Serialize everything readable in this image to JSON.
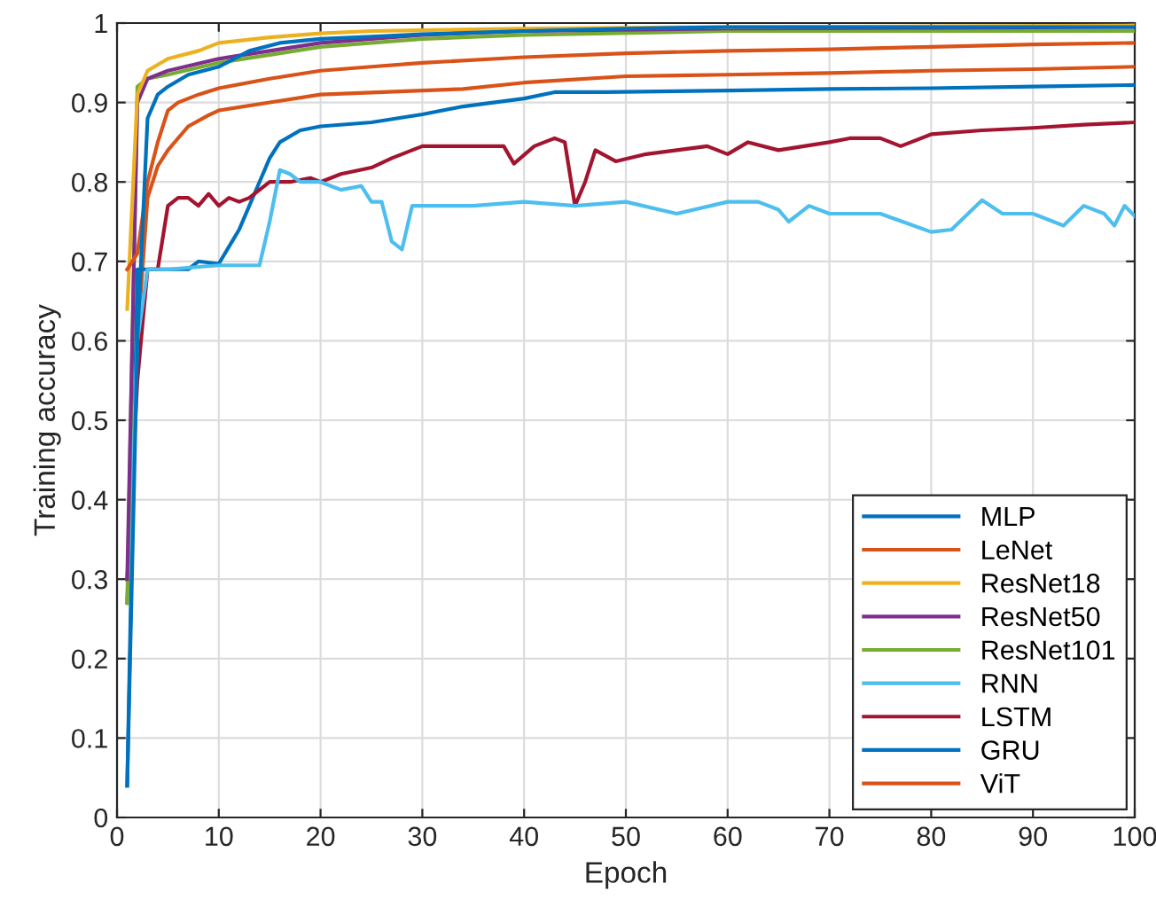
{
  "chart_data": {
    "type": "line",
    "xlabel": "Epoch",
    "ylabel": "Training accuracy",
    "xlim": [
      0,
      100
    ],
    "ylim": [
      0,
      1
    ],
    "xticks": [
      0,
      10,
      20,
      30,
      40,
      50,
      60,
      70,
      80,
      90,
      100
    ],
    "yticks": [
      0,
      0.1,
      0.2,
      0.3,
      0.4,
      0.5,
      0.6,
      0.7,
      0.8,
      0.9,
      1
    ],
    "grid": true,
    "legend": "bottom right",
    "marker": "none",
    "line_style": "solid",
    "series": [
      {
        "name": "MLP",
        "color": "#0072bd",
        "x": [
          1,
          2,
          3,
          4,
          5,
          7,
          10,
          13,
          16,
          20,
          25,
          30,
          40,
          50,
          60,
          80,
          100
        ],
        "values": [
          0.04,
          0.6,
          0.88,
          0.91,
          0.92,
          0.935,
          0.945,
          0.965,
          0.975,
          0.98,
          0.983,
          0.986,
          0.99,
          0.993,
          0.995,
          0.995,
          0.995
        ]
      },
      {
        "name": "LeNet",
        "color": "#d95319",
        "x": [
          1,
          2,
          3,
          4,
          5,
          6,
          8,
          10,
          15,
          20,
          25,
          30,
          40,
          50,
          60,
          70,
          80,
          90,
          100
        ],
        "values": [
          0.69,
          0.71,
          0.8,
          0.85,
          0.89,
          0.9,
          0.91,
          0.918,
          0.93,
          0.94,
          0.945,
          0.95,
          0.957,
          0.962,
          0.965,
          0.967,
          0.97,
          0.973,
          0.975
        ]
      },
      {
        "name": "ResNet18",
        "color": "#edb120",
        "x": [
          1,
          2,
          3,
          5,
          8,
          10,
          15,
          20,
          25,
          30,
          40,
          60,
          80,
          100
        ],
        "values": [
          0.64,
          0.91,
          0.94,
          0.955,
          0.965,
          0.975,
          0.982,
          0.987,
          0.99,
          0.991,
          0.993,
          0.995,
          0.996,
          0.997
        ]
      },
      {
        "name": "ResNet50",
        "color": "#7e2f8e",
        "x": [
          1,
          2,
          3,
          5,
          10,
          15,
          20,
          30,
          40,
          60,
          80,
          100
        ],
        "values": [
          0.3,
          0.9,
          0.93,
          0.94,
          0.955,
          0.965,
          0.975,
          0.985,
          0.99,
          0.993,
          0.994,
          0.995
        ]
      },
      {
        "name": "ResNet101",
        "color": "#77ac30",
        "x": [
          1,
          2,
          3,
          5,
          10,
          15,
          20,
          30,
          40,
          60,
          80,
          100
        ],
        "values": [
          0.27,
          0.92,
          0.93,
          0.935,
          0.95,
          0.96,
          0.97,
          0.98,
          0.985,
          0.99,
          0.99,
          0.99
        ]
      },
      {
        "name": "RNN",
        "color": "#4dbeee",
        "x": [
          1,
          2,
          3,
          5,
          10,
          14,
          15,
          16,
          17,
          18,
          20,
          22,
          24,
          25,
          26,
          27,
          28,
          29,
          32,
          35,
          40,
          45,
          50,
          55,
          60,
          63,
          65,
          66,
          68,
          70,
          75,
          80,
          82,
          85,
          87,
          90,
          93,
          95,
          97,
          98,
          99,
          100
        ],
        "values": [
          0.27,
          0.6,
          0.69,
          0.69,
          0.695,
          0.695,
          0.75,
          0.815,
          0.81,
          0.8,
          0.8,
          0.79,
          0.795,
          0.775,
          0.775,
          0.725,
          0.715,
          0.77,
          0.77,
          0.77,
          0.775,
          0.77,
          0.775,
          0.76,
          0.775,
          0.775,
          0.765,
          0.75,
          0.77,
          0.76,
          0.76,
          0.737,
          0.74,
          0.777,
          0.76,
          0.76,
          0.745,
          0.77,
          0.76,
          0.745,
          0.77,
          0.757
        ]
      },
      {
        "name": "LSTM",
        "color": "#a2142f",
        "x": [
          1,
          2,
          3,
          4,
          5,
          6,
          7,
          8,
          9,
          10,
          11,
          12,
          13,
          14,
          15,
          17,
          19,
          20,
          22,
          25,
          27,
          30,
          35,
          38,
          39,
          41,
          43,
          44,
          45,
          46,
          47,
          49,
          52,
          55,
          58,
          60,
          62,
          65,
          70,
          72,
          75,
          77,
          80,
          85,
          90,
          95,
          100
        ],
        "values": [
          0.3,
          0.55,
          0.69,
          0.69,
          0.77,
          0.78,
          0.78,
          0.77,
          0.785,
          0.77,
          0.78,
          0.775,
          0.78,
          0.79,
          0.8,
          0.8,
          0.805,
          0.8,
          0.81,
          0.818,
          0.83,
          0.845,
          0.845,
          0.845,
          0.823,
          0.845,
          0.855,
          0.85,
          0.77,
          0.8,
          0.84,
          0.826,
          0.835,
          0.84,
          0.845,
          0.835,
          0.85,
          0.84,
          0.85,
          0.855,
          0.855,
          0.845,
          0.86,
          0.865,
          0.868,
          0.872,
          0.875
        ]
      },
      {
        "name": "GRU",
        "color": "#0072bd",
        "x": [
          1,
          2,
          3,
          5,
          7,
          8,
          10,
          12,
          14,
          15,
          16,
          18,
          20,
          25,
          30,
          34,
          40,
          43,
          48,
          60,
          70,
          80,
          90,
          100
        ],
        "values": [
          0.04,
          0.69,
          0.69,
          0.69,
          0.69,
          0.7,
          0.697,
          0.74,
          0.8,
          0.83,
          0.85,
          0.865,
          0.87,
          0.875,
          0.885,
          0.895,
          0.905,
          0.913,
          0.913,
          0.915,
          0.917,
          0.918,
          0.92,
          0.922
        ]
      },
      {
        "name": "ViT",
        "color": "#d95319",
        "x": [
          1,
          2,
          3,
          4,
          5,
          7,
          9,
          10,
          16,
          20,
          30,
          34,
          40,
          50,
          60,
          70,
          80,
          90,
          100
        ],
        "values": [
          0.27,
          0.6,
          0.78,
          0.82,
          0.84,
          0.87,
          0.884,
          0.89,
          0.902,
          0.91,
          0.915,
          0.917,
          0.925,
          0.933,
          0.935,
          0.937,
          0.94,
          0.942,
          0.945
        ]
      }
    ]
  }
}
